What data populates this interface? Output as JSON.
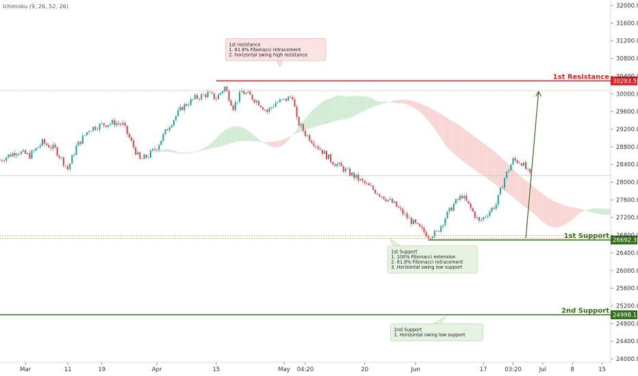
{
  "indicator_label": "Ichimoku (9, 26, 52, 26)",
  "chart_data": {
    "type": "candlestick",
    "y_axis": {
      "min": 24000,
      "max": 32200,
      "ticks": [
        "32000.0",
        "31600.0",
        "31200.0",
        "30800.0",
        "30400.0",
        "30000.0",
        "29600.0",
        "29200.0",
        "28800.0",
        "28400.0",
        "28000.0",
        "27600.0",
        "27200.0",
        "26800.0",
        "26400.0",
        "26000.0",
        "25600.0",
        "25200.0",
        "24800.0",
        "24400.0",
        "24000.0"
      ],
      "tick_values": [
        32000,
        31600,
        31200,
        30800,
        30400,
        30000,
        29600,
        29200,
        28800,
        28400,
        28000,
        27600,
        27200,
        26800,
        26400,
        26000,
        25600,
        25200,
        24800,
        24400,
        24000
      ]
    },
    "x_axis": {
      "start": "2023-02-23",
      "end": "2023-07-17",
      "ticks": [
        {
          "label": "Mar",
          "date": "2023-03-01"
        },
        {
          "label": "11",
          "date": "2023-03-11"
        },
        {
          "label": "19",
          "date": "2023-03-19"
        },
        {
          "label": "Apr",
          "date": "2023-04-01"
        },
        {
          "label": "15",
          "date": "2023-04-15"
        },
        {
          "label": "May",
          "date": "2023-05-01"
        },
        {
          "label": "04:20",
          "date": "2023-05-06"
        },
        {
          "label": "20",
          "date": "2023-05-20"
        },
        {
          "label": "Jun",
          "date": "2023-06-01"
        },
        {
          "label": "17",
          "date": "2023-06-17"
        },
        {
          "label": "03:20",
          "date": "2023-06-24"
        },
        {
          "label": "Jul",
          "date": "2023-07-01"
        },
        {
          "label": "8",
          "date": "2023-07-08"
        },
        {
          "label": "15",
          "date": "2023-07-15"
        }
      ]
    },
    "price_path": [
      [
        "2023-02-23",
        28500
      ],
      [
        "2023-02-27",
        28700
      ],
      [
        "2023-03-02",
        28600
      ],
      [
        "2023-03-05",
        28900
      ],
      [
        "2023-03-08",
        28750
      ],
      [
        "2023-03-11",
        28300
      ],
      [
        "2023-03-13",
        28800
      ],
      [
        "2023-03-16",
        29200
      ],
      [
        "2023-03-19",
        29300
      ],
      [
        "2023-03-22",
        29350
      ],
      [
        "2023-03-24",
        29300
      ],
      [
        "2023-03-26",
        28900
      ],
      [
        "2023-03-28",
        28500
      ],
      [
        "2023-03-30",
        28600
      ],
      [
        "2023-04-01",
        28800
      ],
      [
        "2023-04-04",
        29300
      ],
      [
        "2023-04-07",
        29700
      ],
      [
        "2023-04-10",
        29900
      ],
      [
        "2023-04-13",
        30000
      ],
      [
        "2023-04-15",
        29900
      ],
      [
        "2023-04-17",
        30150
      ],
      [
        "2023-04-19",
        29700
      ],
      [
        "2023-04-21",
        30050
      ],
      [
        "2023-04-23",
        29950
      ],
      [
        "2023-04-25",
        29800
      ],
      [
        "2023-04-27",
        29600
      ],
      [
        "2023-04-29",
        29800
      ],
      [
        "2023-05-01",
        29850
      ],
      [
        "2023-05-03",
        29950
      ],
      [
        "2023-05-04",
        29400
      ],
      [
        "2023-05-06",
        29100
      ],
      [
        "2023-05-09",
        28800
      ],
      [
        "2023-05-12",
        28500
      ],
      [
        "2023-05-15",
        28300
      ],
      [
        "2023-05-18",
        28100
      ],
      [
        "2023-05-21",
        27900
      ],
      [
        "2023-05-24",
        27700
      ],
      [
        "2023-05-27",
        27500
      ],
      [
        "2023-05-30",
        27200
      ],
      [
        "2023-06-02",
        26950
      ],
      [
        "2023-06-04",
        26800
      ],
      [
        "2023-06-06",
        26850
      ],
      [
        "2023-06-08",
        27200
      ],
      [
        "2023-06-10",
        27500
      ],
      [
        "2023-06-12",
        27700
      ],
      [
        "2023-06-14",
        27400
      ],
      [
        "2023-06-16",
        27100
      ],
      [
        "2023-06-18",
        27300
      ],
      [
        "2023-06-20",
        27500
      ],
      [
        "2023-06-22",
        28100
      ],
      [
        "2023-06-24",
        28500
      ],
      [
        "2023-06-26",
        28450
      ],
      [
        "2023-06-28",
        28150
      ]
    ],
    "ichimoku_cloud_color_bull": "#d3ecd6",
    "ichimoku_cloud_color_bear": "#f9d6d6",
    "levels": [
      {
        "name": "1st Resistance",
        "value": 30293.5,
        "value_label": "30293.5",
        "color": "#e11d1d",
        "from_date": "2023-04-15"
      },
      {
        "name": "1st Support",
        "value": 26692.3,
        "value_label": "26692.3",
        "color": "#2f6f18",
        "from_date": "2023-06-04"
      },
      {
        "name": "2nd Support",
        "value": 24998.1,
        "value_label": "24998.1",
        "color": "#2f6f18",
        "from_date": "2023-02-23"
      }
    ],
    "dotted_lines": [
      30070,
      26790,
      26730
    ],
    "current_price_line": 28150,
    "arrow": {
      "from_date": "2023-06-27",
      "from_value": 26730,
      "to_date": "2023-06-30",
      "to_value": 30050,
      "color": "#2f6f18"
    },
    "annotations": [
      {
        "lines": [
          "1st resistance",
          "1. 61.8% Fibonacci retracement",
          "2. horizontal swing high resistance"
        ],
        "date": "2023-04-29",
        "value": 31000,
        "kind": "bear"
      },
      {
        "lines": [
          "1st Support",
          "1. 100% Fibonacci extension",
          "2. 61.8% Fibonacci retracement",
          "3. Horizontal swing low support"
        ],
        "date": "2023-06-05",
        "value": 26250,
        "kind": "bull"
      },
      {
        "lines": [
          "2nd Support",
          "1.  Horizontal swing low support"
        ],
        "date": "2023-06-06",
        "value": 24600,
        "kind": "bull"
      }
    ]
  }
}
